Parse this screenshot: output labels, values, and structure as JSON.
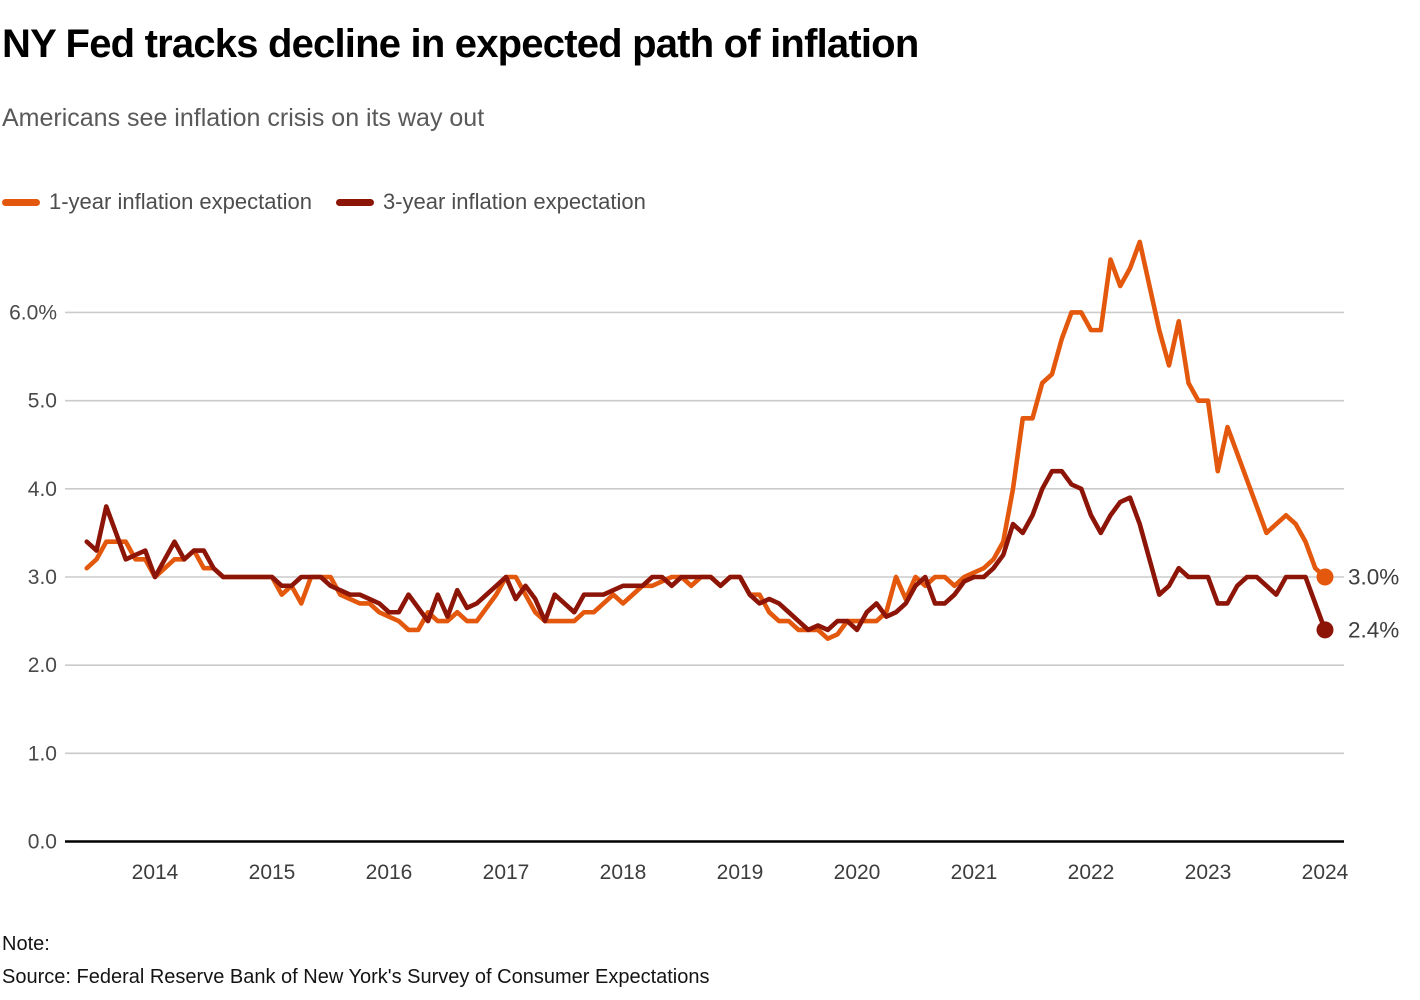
{
  "chart_data": {
    "type": "line",
    "title": "NY Fed tracks decline in expected path of inflation",
    "subtitle": "Americans see inflation crisis on its way out",
    "note_label": "Note:",
    "source": "Source: Federal Reserve Bank of New York's Survey of Consumer Expectations",
    "grid": true,
    "legend_position": "top-left",
    "ylim": [
      0,
      6.9
    ],
    "grid_color": "#cbcbcb",
    "axis_color": "#000000",
    "tick_label_color": "#4a4a4a",
    "end_label_color": "#3d3d3d",
    "x_months": [
      "2013-06",
      "2013-07",
      "2013-08",
      "2013-09",
      "2013-10",
      "2013-11",
      "2013-12",
      "2014-01",
      "2014-02",
      "2014-03",
      "2014-04",
      "2014-05",
      "2014-06",
      "2014-07",
      "2014-08",
      "2014-09",
      "2014-10",
      "2014-11",
      "2014-12",
      "2015-01",
      "2015-02",
      "2015-03",
      "2015-04",
      "2015-05",
      "2015-06",
      "2015-07",
      "2015-08",
      "2015-09",
      "2015-10",
      "2015-11",
      "2015-12",
      "2016-01",
      "2016-02",
      "2016-03",
      "2016-04",
      "2016-05",
      "2016-06",
      "2016-07",
      "2016-08",
      "2016-09",
      "2016-10",
      "2016-11",
      "2016-12",
      "2017-01",
      "2017-02",
      "2017-03",
      "2017-04",
      "2017-05",
      "2017-06",
      "2017-07",
      "2017-08",
      "2017-09",
      "2017-10",
      "2017-11",
      "2017-12",
      "2018-01",
      "2018-02",
      "2018-03",
      "2018-04",
      "2018-05",
      "2018-06",
      "2018-07",
      "2018-08",
      "2018-09",
      "2018-10",
      "2018-11",
      "2018-12",
      "2019-01",
      "2019-02",
      "2019-03",
      "2019-04",
      "2019-05",
      "2019-06",
      "2019-07",
      "2019-08",
      "2019-09",
      "2019-10",
      "2019-11",
      "2019-12",
      "2020-01",
      "2020-02",
      "2020-03",
      "2020-04",
      "2020-05",
      "2020-06",
      "2020-07",
      "2020-08",
      "2020-09",
      "2020-10",
      "2020-11",
      "2020-12",
      "2021-01",
      "2021-02",
      "2021-03",
      "2021-04",
      "2021-05",
      "2021-06",
      "2021-07",
      "2021-08",
      "2021-09",
      "2021-10",
      "2021-11",
      "2021-12",
      "2022-01",
      "2022-02",
      "2022-03",
      "2022-04",
      "2022-05",
      "2022-06",
      "2022-07",
      "2022-08",
      "2022-09",
      "2022-10",
      "2022-11",
      "2022-12",
      "2023-01",
      "2023-02",
      "2023-03",
      "2023-04",
      "2023-05",
      "2023-06",
      "2023-07",
      "2023-08",
      "2023-09",
      "2023-10",
      "2023-11",
      "2023-12",
      "2024-01"
    ],
    "series": [
      {
        "name": "1-year inflation expectation",
        "color": "#E3580C",
        "end_label": "3.0%",
        "values": [
          3.1,
          3.2,
          3.4,
          3.4,
          3.4,
          3.2,
          3.2,
          3.0,
          3.1,
          3.2,
          3.2,
          3.3,
          3.1,
          3.1,
          3.0,
          3.0,
          3.0,
          3.0,
          3.0,
          3.0,
          2.8,
          2.9,
          2.7,
          3.0,
          3.0,
          3.0,
          2.8,
          2.75,
          2.7,
          2.7,
          2.6,
          2.55,
          2.5,
          2.4,
          2.4,
          2.6,
          2.5,
          2.5,
          2.6,
          2.5,
          2.5,
          2.65,
          2.8,
          3.0,
          3.0,
          2.8,
          2.6,
          2.5,
          2.5,
          2.5,
          2.5,
          2.6,
          2.6,
          2.7,
          2.8,
          2.7,
          2.8,
          2.9,
          2.9,
          2.95,
          3.0,
          3.0,
          2.9,
          3.0,
          3.0,
          2.9,
          3.0,
          3.0,
          2.8,
          2.8,
          2.6,
          2.5,
          2.5,
          2.4,
          2.4,
          2.4,
          2.3,
          2.35,
          2.5,
          2.5,
          2.5,
          2.5,
          2.6,
          3.0,
          2.75,
          3.0,
          2.9,
          3.0,
          3.0,
          2.9,
          3.0,
          3.05,
          3.1,
          3.2,
          3.4,
          4.0,
          4.8,
          4.8,
          5.2,
          5.3,
          5.7,
          6.0,
          6.0,
          5.8,
          5.8,
          6.6,
          6.3,
          6.5,
          6.8,
          6.3,
          5.8,
          5.4,
          5.9,
          5.2,
          5.0,
          5.0,
          4.2,
          4.7,
          4.4,
          4.1,
          3.8,
          3.5,
          3.6,
          3.7,
          3.6,
          3.4,
          3.1,
          3.0
        ]
      },
      {
        "name": "3-year inflation expectation",
        "color": "#8D1508",
        "end_label": "2.4%",
        "values": [
          3.4,
          3.3,
          3.8,
          3.5,
          3.2,
          3.25,
          3.3,
          3.0,
          3.2,
          3.4,
          3.2,
          3.3,
          3.3,
          3.1,
          3.0,
          3.0,
          3.0,
          3.0,
          3.0,
          3.0,
          2.9,
          2.9,
          3.0,
          3.0,
          3.0,
          2.9,
          2.85,
          2.8,
          2.8,
          2.75,
          2.7,
          2.6,
          2.6,
          2.8,
          2.65,
          2.5,
          2.8,
          2.55,
          2.85,
          2.65,
          2.7,
          2.8,
          2.9,
          3.0,
          2.75,
          2.9,
          2.75,
          2.5,
          2.8,
          2.7,
          2.6,
          2.8,
          2.8,
          2.8,
          2.85,
          2.9,
          2.9,
          2.9,
          3.0,
          3.0,
          2.9,
          3.0,
          3.0,
          3.0,
          3.0,
          2.9,
          3.0,
          3.0,
          2.8,
          2.7,
          2.75,
          2.7,
          2.6,
          2.5,
          2.4,
          2.45,
          2.4,
          2.5,
          2.5,
          2.4,
          2.6,
          2.7,
          2.55,
          2.6,
          2.7,
          2.9,
          3.0,
          2.7,
          2.7,
          2.8,
          2.95,
          3.0,
          3.0,
          3.1,
          3.25,
          3.6,
          3.5,
          3.7,
          4.0,
          4.2,
          4.2,
          4.05,
          4.0,
          3.7,
          3.5,
          3.7,
          3.85,
          3.9,
          3.6,
          3.2,
          2.8,
          2.9,
          3.1,
          3.0,
          3.0,
          3.0,
          2.7,
          2.7,
          2.9,
          3.0,
          3.0,
          2.9,
          2.8,
          3.0,
          3.0,
          3.0,
          2.7,
          2.4
        ]
      }
    ],
    "y_ticks": [
      {
        "value": 6,
        "label": "6.0%"
      },
      {
        "value": 5,
        "label": "5.0"
      },
      {
        "value": 4,
        "label": "4.0"
      },
      {
        "value": 3,
        "label": "3.0"
      },
      {
        "value": 2,
        "label": "2.0"
      },
      {
        "value": 1,
        "label": "1.0"
      },
      {
        "value": 0,
        "label": "0.0"
      }
    ],
    "x_ticks": [
      {
        "month": "2014-01",
        "label": "2014"
      },
      {
        "month": "2015-01",
        "label": "2015"
      },
      {
        "month": "2016-01",
        "label": "2016"
      },
      {
        "month": "2017-01",
        "label": "2017"
      },
      {
        "month": "2018-01",
        "label": "2018"
      },
      {
        "month": "2019-01",
        "label": "2019"
      },
      {
        "month": "2020-01",
        "label": "2020"
      },
      {
        "month": "2021-01",
        "label": "2021"
      },
      {
        "month": "2022-01",
        "label": "2022"
      },
      {
        "month": "2023-01",
        "label": "2023"
      },
      {
        "month": "2024-01",
        "label": "2024"
      }
    ]
  }
}
